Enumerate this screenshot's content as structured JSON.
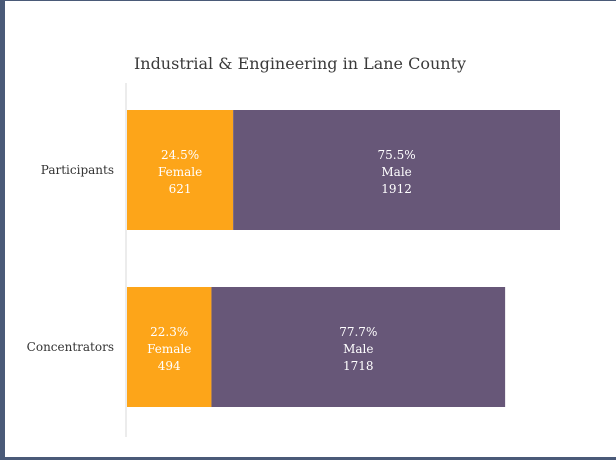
{
  "chart_data": {
    "type": "bar",
    "orientation": "horizontal",
    "stacked": true,
    "title": "Industrial & Engineering in Lane County",
    "categories": [
      "Participants",
      "Concentrators"
    ],
    "series": [
      {
        "name": "Female",
        "color": "#fda519",
        "values": [
          621,
          494
        ],
        "percent_labels": [
          "24.5%",
          "22.3%"
        ],
        "count_labels": [
          "621",
          "494"
        ]
      },
      {
        "name": "Male",
        "color": "#675778",
        "values": [
          1912,
          1718
        ],
        "percent_labels": [
          "75.5%",
          "77.7%"
        ],
        "count_labels": [
          "1912",
          "1718"
        ]
      }
    ],
    "xlim": [
      0,
      2650
    ],
    "grid": false,
    "legend": "none"
  }
}
